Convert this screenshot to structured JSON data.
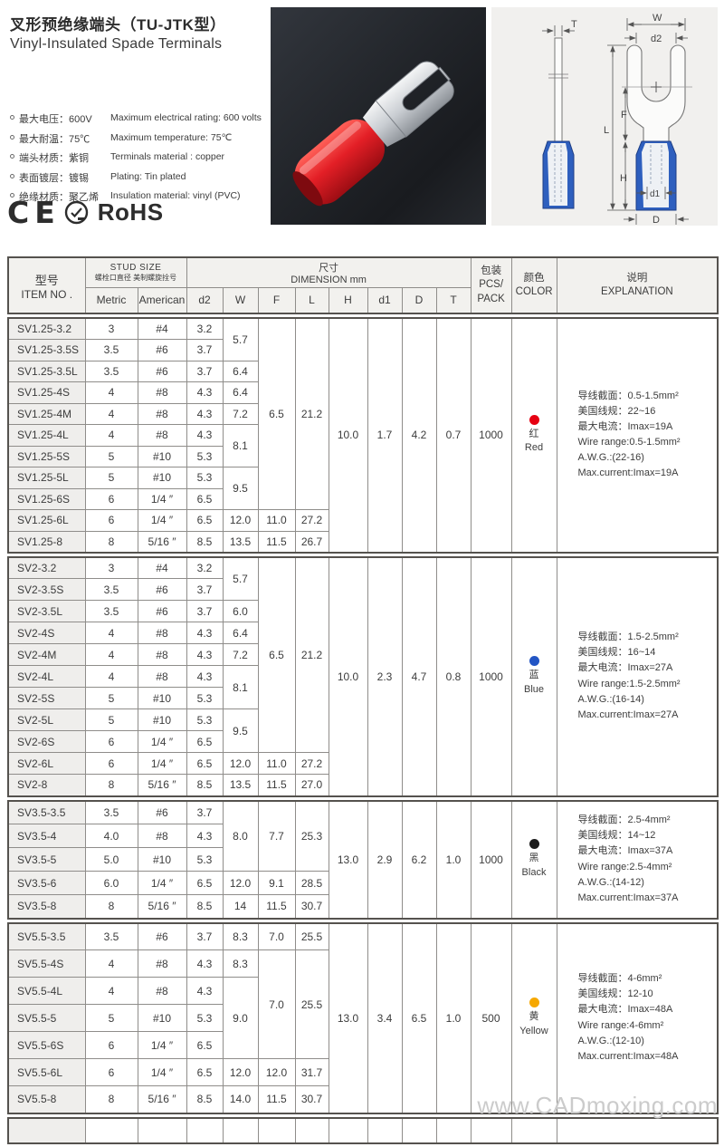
{
  "header": {
    "title_zh": "叉形预绝缘端头（TU-JTK型）",
    "title_en": "Vinyl-Insulated Spade Terminals",
    "specs": [
      {
        "zh": "最大电压：600V",
        "en": "Maximum electrical rating: 600 volts"
      },
      {
        "zh": "最大耐温：75℃",
        "en": "Maximum temperature: 75℃"
      },
      {
        "zh": "端头材质：紫铜",
        "en": "Terminals material : copper"
      },
      {
        "zh": "表面镀层：镀锡",
        "en": "Plating: Tin plated"
      },
      {
        "zh": "绝缘材质：聚乙烯",
        "en": "Insulation material: vinyl (PVC)"
      }
    ],
    "certs": {
      "ce": "CE",
      "rohs": "RoHS"
    }
  },
  "diagram": {
    "labels": {
      "t": "T",
      "w": "W",
      "d2": "d2",
      "f": "F",
      "l": "L",
      "h": "H",
      "d1": "d1",
      "d": "D"
    },
    "sleeve_color": "#2e5fbe"
  },
  "watermark": "www.CADmoxing.com",
  "table": {
    "head": {
      "item_no": [
        "型号",
        "ITEM NO ."
      ],
      "stud_size": [
        "STUD SIZE",
        "螺栓口直径   美制螺旋拴号"
      ],
      "stud_cols": [
        "Metric",
        "American"
      ],
      "dimension": [
        "尺寸",
        "DIMENSION mm"
      ],
      "dim_cols": [
        "d2",
        "W",
        "F",
        "L",
        "H",
        "d1",
        "D",
        "T"
      ],
      "pack": [
        "包装",
        "PCS/",
        "PACK"
      ],
      "color": [
        "颜色",
        "COLOR"
      ],
      "explanation": [
        "说明",
        "EXPLANATION"
      ]
    },
    "groups": [
      {
        "h": "10.0",
        "d1": "1.7",
        "D": "4.2",
        "T": "0.7",
        "pcs": "1000",
        "color": {
          "hex": "#e60012",
          "zh": "红",
          "en": "Red"
        },
        "explanation": [
          "导线截面：0.5-1.5mm²",
          "美国线规：22~16",
          "最大电流：Imax=19A",
          "Wire range:0.5-1.5mm²",
          "A.W.G.:(22-16)",
          "Max.current:Imax=19A"
        ],
        "rows": [
          [
            "SV1.25-3.2",
            "3",
            "#4",
            "3.2",
            {
              "v": "5.7",
              "rs": 2
            },
            {
              "v": "6.5",
              "rs": 9
            },
            {
              "v": "21.2",
              "rs": 9
            }
          ],
          [
            "SV1.25-3.5S",
            "3.5",
            "#6",
            "3.7"
          ],
          [
            "SV1.25-3.5L",
            "3.5",
            "#6",
            "3.7",
            {
              "v": "6.4"
            }
          ],
          [
            "SV1.25-4S",
            "4",
            "#8",
            "4.3",
            {
              "v": "6.4"
            }
          ],
          [
            "SV1.25-4M",
            "4",
            "#8",
            "4.3",
            {
              "v": "7.2"
            }
          ],
          [
            "SV1.25-4L",
            "4",
            "#8",
            "4.3",
            {
              "v": "8.1",
              "rs": 2
            }
          ],
          [
            "SV1.25-5S",
            "5",
            "#10",
            "5.3"
          ],
          [
            "SV1.25-5L",
            "5",
            "#10",
            "5.3",
            {
              "v": "9.5",
              "rs": 2
            }
          ],
          [
            "SV1.25-6S",
            "6",
            "1/4 ″",
            "6.5"
          ],
          [
            "SV1.25-6L",
            "6",
            "1/4 ″",
            "6.5",
            {
              "v": "12.0"
            },
            {
              "v": "11.0"
            },
            {
              "v": "27.2"
            }
          ],
          [
            "SV1.25-8",
            "8",
            "5/16 ″",
            "8.5",
            {
              "v": "13.5"
            },
            {
              "v": "11.5"
            },
            {
              "v": "26.7"
            }
          ]
        ]
      },
      {
        "h": "10.0",
        "d1": "2.3",
        "D": "4.7",
        "T": "0.8",
        "pcs": "1000",
        "color": {
          "hex": "#2255c4",
          "zh": "蓝",
          "en": "Blue"
        },
        "explanation": [
          "导线截面：1.5-2.5mm²",
          "美国线规：16~14",
          "最大电流：Imax=27A",
          "Wire range:1.5-2.5mm²",
          "A.W.G.:(16-14)",
          "Max.current:Imax=27A"
        ],
        "rows": [
          [
            "SV2-3.2",
            "3",
            "#4",
            "3.2",
            {
              "v": "5.7",
              "rs": 2
            },
            {
              "v": "6.5",
              "rs": 9
            },
            {
              "v": "21.2",
              "rs": 9
            }
          ],
          [
            "SV2-3.5S",
            "3.5",
            "#6",
            "3.7"
          ],
          [
            "SV2-3.5L",
            "3.5",
            "#6",
            "3.7",
            {
              "v": "6.0"
            }
          ],
          [
            "SV2-4S",
            "4",
            "#8",
            "4.3",
            {
              "v": "6.4"
            }
          ],
          [
            "SV2-4M",
            "4",
            "#8",
            "4.3",
            {
              "v": "7.2"
            }
          ],
          [
            "SV2-4L",
            "4",
            "#8",
            "4.3",
            {
              "v": "8.1",
              "rs": 2
            }
          ],
          [
            "SV2-5S",
            "5",
            "#10",
            "5.3"
          ],
          [
            "SV2-5L",
            "5",
            "#10",
            "5.3",
            {
              "v": "9.5",
              "rs": 2
            }
          ],
          [
            "SV2-6S",
            "6",
            "1/4 ″",
            "6.5"
          ],
          [
            "SV2-6L",
            "6",
            "1/4 ″",
            "6.5",
            {
              "v": "12.0"
            },
            {
              "v": "11.0"
            },
            {
              "v": "27.2"
            }
          ],
          [
            "SV2-8",
            "8",
            "5/16 ″",
            "8.5",
            {
              "v": "13.5"
            },
            {
              "v": "11.5"
            },
            {
              "v": "27.0"
            }
          ]
        ]
      },
      {
        "h": "13.0",
        "d1": "2.9",
        "D": "6.2",
        "T": "1.0",
        "pcs": "1000",
        "color": {
          "hex": "#1c1c1c",
          "zh": "黑",
          "en": "Black"
        },
        "explanation": [
          "导线截面：2.5-4mm²",
          "美国线规：14~12",
          "最大电流：Imax=37A",
          "Wire range:2.5-4mm²",
          "A.W.G.:(14-12)",
          "Max.current:Imax=37A"
        ],
        "rows": [
          [
            "SV3.5-3.5",
            "3.5",
            "#6",
            "3.7",
            {
              "v": "8.0",
              "rs": 3
            },
            {
              "v": "7.7",
              "rs": 3
            },
            {
              "v": "25.3",
              "rs": 3
            }
          ],
          [
            "SV3.5-4",
            "4.0",
            "#8",
            "4.3"
          ],
          [
            "SV3.5-5",
            "5.0",
            "#10",
            "5.3"
          ],
          [
            "SV3.5-6",
            "6.0",
            "1/4 ″",
            "6.5",
            {
              "v": "12.0"
            },
            {
              "v": "9.1"
            },
            {
              "v": "28.5"
            }
          ],
          [
            "SV3.5-8",
            "8",
            "5/16 ″",
            "8.5",
            {
              "v": "14"
            },
            {
              "v": "11.5"
            },
            {
              "v": "30.7"
            }
          ]
        ]
      },
      {
        "h": "13.0",
        "d1": "3.4",
        "D": "6.5",
        "T": "1.0",
        "pcs": "500",
        "color": {
          "hex": "#f6a800",
          "zh": "黄",
          "en": "Yellow"
        },
        "explanation": [
          "导线截面：4-6mm²",
          "美国线规：12-10",
          "最大电流：Imax=48A",
          "Wire range:4-6mm²",
          "A.W.G.:(12-10)",
          "Max.current:Imax=48A"
        ],
        "rows": [
          [
            "SV5.5-3.5",
            "3.5",
            "#6",
            "3.7",
            {
              "v": "8.3"
            },
            {
              "v": "7.0"
            },
            {
              "v": "25.5"
            }
          ],
          [
            "SV5.5-4S",
            "4",
            "#8",
            "4.3",
            {
              "v": "8.3"
            },
            {
              "v": "7.0",
              "rs": 4
            },
            {
              "v": "25.5",
              "rs": 4
            }
          ],
          [
            "SV5.5-4L",
            "4",
            "#8",
            "4.3",
            {
              "v": "9.0",
              "rs": 3
            }
          ],
          [
            "SV5.5-5",
            "5",
            "#10",
            "5.3"
          ],
          [
            "SV5.5-6S",
            "6",
            "1/4 ″",
            "6.5"
          ],
          [
            "SV5.5-6L",
            "6",
            "1/4 ″",
            "6.5",
            {
              "v": "12.0"
            },
            {
              "v": "12.0"
            },
            {
              "v": "31.7"
            }
          ],
          [
            "SV5.5-8",
            "8",
            "5/16 ″",
            "8.5",
            {
              "v": "14.0"
            },
            {
              "v": "11.5"
            },
            {
              "v": "30.7"
            }
          ]
        ]
      }
    ]
  }
}
